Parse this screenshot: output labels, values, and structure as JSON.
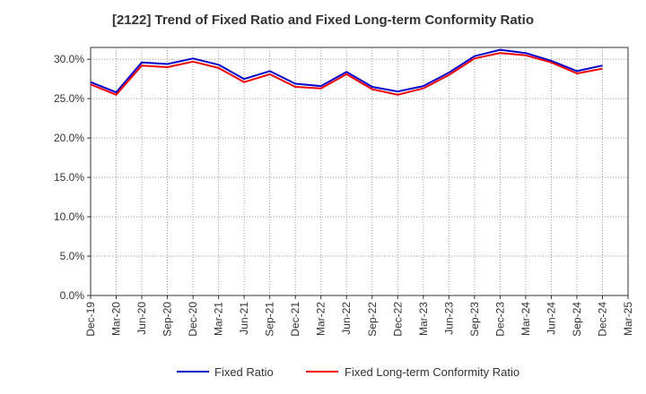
{
  "chart_data": {
    "type": "line",
    "title": "[2122]  Trend of Fixed Ratio and Fixed Long-term Conformity Ratio",
    "xlabel": "",
    "ylabel": "",
    "ylim": [
      0,
      31.5
    ],
    "y_ticks": [
      "0.0%",
      "5.0%",
      "10.0%",
      "15.0%",
      "20.0%",
      "25.0%",
      "30.0%"
    ],
    "y_tick_values": [
      0,
      5,
      10,
      15,
      20,
      25,
      30
    ],
    "categories": [
      "Dec-19",
      "Mar-20",
      "Jun-20",
      "Sep-20",
      "Dec-20",
      "Mar-21",
      "Jun-21",
      "Sep-21",
      "Dec-21",
      "Mar-22",
      "Jun-22",
      "Sep-22",
      "Dec-22",
      "Mar-23",
      "Jun-23",
      "Sep-23",
      "Dec-23",
      "Mar-24",
      "Jun-24",
      "Sep-24",
      "Dec-24",
      "Mar-25"
    ],
    "grid": true,
    "legend_position": "bottom",
    "series": [
      {
        "name": "Fixed Ratio",
        "color": "#0000cc",
        "values": [
          27.1,
          25.8,
          29.6,
          29.4,
          30.1,
          29.3,
          27.5,
          28.5,
          26.9,
          26.6,
          28.4,
          26.5,
          25.9,
          26.6,
          28.3,
          30.4,
          31.2,
          30.8,
          29.8,
          28.5,
          29.2,
          null
        ]
      },
      {
        "name": "Fixed Long-term Conformity Ratio",
        "color": "#ee0000",
        "values": [
          26.8,
          25.5,
          29.2,
          29.0,
          29.7,
          28.9,
          27.1,
          28.1,
          26.5,
          26.3,
          28.1,
          26.2,
          25.5,
          26.3,
          28.0,
          30.1,
          30.8,
          30.5,
          29.6,
          28.2,
          28.8,
          null
        ]
      }
    ]
  }
}
